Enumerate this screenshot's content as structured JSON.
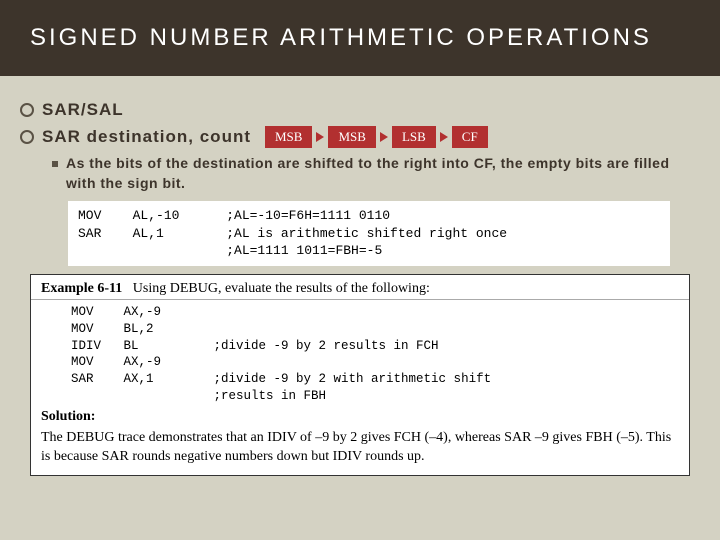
{
  "colors": {
    "page_bg": "#d4d2c3",
    "header_bg": "#3d342b",
    "header_text": "#ffffff",
    "body_text": "#3d342b",
    "ring_border": "#5a5245",
    "diagram_box_bg": "#b23030",
    "diagram_box_text": "#ffffff",
    "code_bg": "#ffffff"
  },
  "typography": {
    "title_fontsize": 24,
    "title_letter_spacing": 3,
    "bullet_fontsize": 17,
    "sub_fontsize": 14,
    "code_fontsize": 13,
    "serif_fontsize": 14
  },
  "title": "SIGNED NUMBER ARITHMETIC OPERATIONS",
  "bullets": {
    "b1": "SAR/SAL",
    "b2": "SAR destination, count"
  },
  "diagram": {
    "box1": "MSB",
    "box2": "MSB",
    "box3": "LSB",
    "box4": "CF"
  },
  "sub": "As the bits of the destination are shifted to the right into CF, the empty bits are filled with the sign bit.",
  "code1": "MOV    AL,-10      ;AL=-10=F6H=1111 0110\nSAR    AL,1        ;AL is arithmetic shifted right once\n                   ;AL=1111 1011=FBH=-5",
  "example": {
    "label": "Example 6-11",
    "prompt": "Using DEBUG, evaluate the results of the following:",
    "code": "MOV    AX,-9\nMOV    BL,2\nIDIV   BL          ;divide -9 by 2 results in FCH\nMOV    AX,-9\nSAR    AX,1        ;divide -9 by 2 with arithmetic shift\n                   ;results in FBH",
    "solution_label": "Solution:",
    "solution_body": "The DEBUG trace demonstrates that an IDIV of –9 by 2 gives FCH (–4), whereas SAR –9 gives FBH (–5). This is because SAR rounds negative numbers down but IDIV rounds up."
  }
}
